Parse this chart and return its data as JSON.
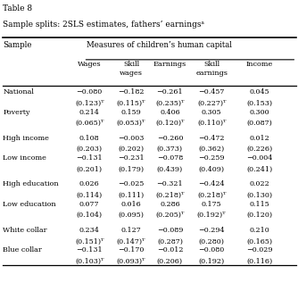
{
  "title": "Table 8",
  "subtitle": "Sample splits: 2SLS estimates, fathers’ earningsᵃ",
  "col_header_1": "Sample",
  "col_header_2": "Measures of children’s human capital",
  "columns": [
    "Wages",
    "Skill\nwages",
    "Earnings",
    "Skill\nearnings",
    "Income"
  ],
  "rows": [
    {
      "label": "National",
      "values": [
        "−0.080",
        "−0.182",
        "−0.261",
        "−0.457",
        "0.045"
      ],
      "se": [
        "(0.123)ᵀ",
        "(0.115)ᵀ",
        "(0.235)ᵀ",
        "(0.227)ᵀ",
        "(0.153)"
      ]
    },
    {
      "label": "Poverty",
      "values": [
        "0.214",
        "0.159",
        "0.406",
        "0.305",
        "0.300"
      ],
      "se": [
        "(0.065)ᵀ",
        "(0.053)ᵀ",
        "(0.120)ᵀ",
        "(0.110)ᵀ",
        "(0.087)"
      ]
    },
    {
      "label": "High income",
      "values": [
        "0.108",
        "−0.003",
        "−0.260",
        "−0.472",
        "0.012"
      ],
      "se": [
        "(0.203)",
        "(0.202)",
        "(0.373)",
        "(0.362)",
        "(0.226)"
      ]
    },
    {
      "label": "Low income",
      "values": [
        "−0.131",
        "−0.231",
        "−0.078",
        "−0.259",
        "−0.004"
      ],
      "se": [
        "(0.201)",
        "(0.179)",
        "(0.439)",
        "(0.409)",
        "(0.241)"
      ]
    },
    {
      "label": "High education",
      "values": [
        "0.026",
        "−0.025",
        "−0.321",
        "−0.424",
        "0.022"
      ],
      "se": [
        "(0.114)",
        "(0.111)",
        "(0.218)ᵀ",
        "(0.218)ᵀ",
        "(0.130)"
      ]
    },
    {
      "label": "Low education",
      "values": [
        "0.077",
        "0.016",
        "0.286",
        "0.175",
        "0.115"
      ],
      "se": [
        "(0.104)",
        "(0.095)",
        "(0.205)ᵀ",
        "(0.192)ᵀ",
        "(0.120)"
      ]
    },
    {
      "label": "White collar",
      "values": [
        "0.234",
        "0.127",
        "−0.089",
        "−0.294",
        "0.210"
      ],
      "se": [
        "(0.151)ᵀ",
        "(0.147)ᵀ",
        "(0.287)",
        "(0.280)",
        "(0.165)"
      ]
    },
    {
      "label": "Blue collar",
      "values": [
        "−0.131",
        "−0.170",
        "−0.012",
        "−0.080",
        "−0.029"
      ],
      "se": [
        "(0.103)ᵀ",
        "(0.093)ᵀ",
        "(0.206)",
        "(0.192)",
        "(0.116)"
      ]
    }
  ]
}
